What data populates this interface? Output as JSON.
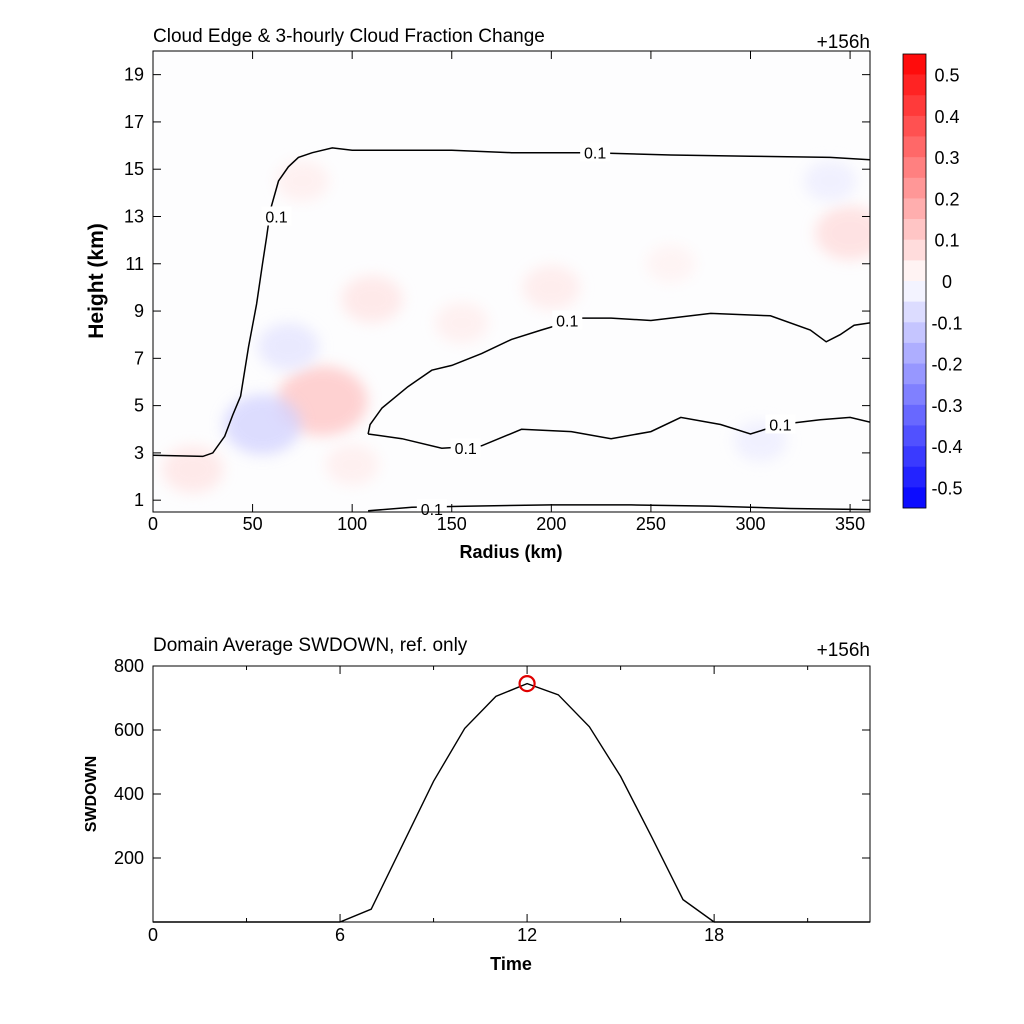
{
  "chart_data": [
    {
      "type": "heatmap",
      "title": "Cloud Edge & 3-hourly Cloud Fraction Change",
      "time_label": "+156h",
      "xlabel": "Radius (km)",
      "ylabel": "Height (km)",
      "xlim": [
        0,
        360
      ],
      "ylim": [
        0.5,
        20
      ],
      "xticks": [
        0,
        50,
        100,
        150,
        200,
        250,
        300,
        350
      ],
      "yticks": [
        1,
        3,
        5,
        7,
        9,
        11,
        13,
        15,
        17,
        19
      ],
      "colorbar": {
        "min": -0.55,
        "max": 0.55,
        "levels": 22,
        "tick_labels": [
          "0.5",
          "0.4",
          "0.3",
          "0.2",
          "0.1",
          "0",
          "-0.1",
          "-0.2",
          "-0.3",
          "-0.4",
          "-0.5"
        ],
        "tick_values": [
          0.5,
          0.4,
          0.3,
          0.2,
          0.1,
          0,
          -0.1,
          -0.2,
          -0.3,
          -0.4,
          -0.5
        ]
      },
      "anomalies": [
        {
          "x": 85,
          "y": 5.2,
          "value": 0.13
        },
        {
          "x": 55,
          "y": 4.2,
          "value": -0.1
        },
        {
          "x": 68,
          "y": 7.5,
          "value": -0.06
        },
        {
          "x": 110,
          "y": 9.5,
          "value": 0.06
        },
        {
          "x": 75,
          "y": 14.5,
          "value": 0.04
        },
        {
          "x": 350,
          "y": 12.3,
          "value": 0.08
        },
        {
          "x": 200,
          "y": 10.0,
          "value": 0.05
        },
        {
          "x": 20,
          "y": 2.3,
          "value": 0.06
        },
        {
          "x": 100,
          "y": 2.5,
          "value": 0.04
        },
        {
          "x": 155,
          "y": 8.5,
          "value": 0.04
        },
        {
          "x": 305,
          "y": 3.5,
          "value": -0.04
        },
        {
          "x": 340,
          "y": 14.5,
          "value": -0.04
        },
        {
          "x": 260,
          "y": 11.0,
          "value": 0.03
        }
      ],
      "contour_level": "0.1",
      "contours": [
        {
          "name": "outer-cloud-edge",
          "points": [
            [
              0,
              2.9
            ],
            [
              25,
              2.85
            ],
            [
              30,
              3.0
            ],
            [
              36,
              3.7
            ],
            [
              40,
              4.6
            ],
            [
              44,
              5.4
            ],
            [
              48,
              7.5
            ],
            [
              52,
              9.3
            ],
            [
              55,
              11.0
            ],
            [
              57,
              12.1
            ],
            [
              59,
              13.3
            ],
            [
              63,
              14.5
            ],
            [
              68,
              15.1
            ],
            [
              73,
              15.5
            ],
            [
              80,
              15.7
            ],
            [
              90,
              15.9
            ],
            [
              100,
              15.8
            ],
            [
              120,
              15.8
            ],
            [
              150,
              15.8
            ],
            [
              180,
              15.7
            ],
            [
              220,
              15.7
            ],
            [
              260,
              15.6
            ],
            [
              300,
              15.55
            ],
            [
              340,
              15.5
            ],
            [
              360,
              15.4
            ]
          ]
        },
        {
          "name": "middle-layer-top",
          "points": [
            [
              108,
              3.8
            ],
            [
              109,
              4.2
            ],
            [
              115,
              4.9
            ],
            [
              128,
              5.8
            ],
            [
              140,
              6.5
            ],
            [
              150,
              6.7
            ],
            [
              165,
              7.2
            ],
            [
              180,
              7.8
            ],
            [
              195,
              8.2
            ],
            [
              215,
              8.7
            ],
            [
              230,
              8.7
            ],
            [
              250,
              8.6
            ],
            [
              280,
              8.9
            ],
            [
              310,
              8.8
            ],
            [
              330,
              8.2
            ],
            [
              338,
              7.7
            ],
            [
              345,
              8.0
            ],
            [
              352,
              8.4
            ],
            [
              360,
              8.5
            ]
          ]
        },
        {
          "name": "middle-layer-bottom",
          "points": [
            [
              108,
              3.8
            ],
            [
              125,
              3.6
            ],
            [
              145,
              3.2
            ],
            [
              165,
              3.3
            ],
            [
              185,
              4.0
            ],
            [
              210,
              3.9
            ],
            [
              230,
              3.6
            ],
            [
              250,
              3.9
            ],
            [
              265,
              4.5
            ],
            [
              285,
              4.2
            ],
            [
              300,
              3.8
            ],
            [
              315,
              4.2
            ],
            [
              335,
              4.4
            ],
            [
              350,
              4.5
            ],
            [
              360,
              4.3
            ]
          ]
        },
        {
          "name": "lowest-layer",
          "points": [
            [
              108,
              0.55
            ],
            [
              130,
              0.7
            ],
            [
              160,
              0.75
            ],
            [
              200,
              0.8
            ],
            [
              240,
              0.8
            ],
            [
              280,
              0.75
            ],
            [
              320,
              0.65
            ],
            [
              360,
              0.6
            ]
          ]
        }
      ],
      "contour_labels": [
        {
          "x": 62,
          "y": 13.0,
          "text": "0.1"
        },
        {
          "x": 222,
          "y": 15.7,
          "text": "0.1"
        },
        {
          "x": 208,
          "y": 8.6,
          "text": "0.1"
        },
        {
          "x": 157,
          "y": 3.2,
          "text": "0.1"
        },
        {
          "x": 315,
          "y": 4.2,
          "text": "0.1"
        },
        {
          "x": 140,
          "y": 0.62,
          "text": "0.1"
        }
      ]
    },
    {
      "type": "line",
      "title": "Domain Average SWDOWN, ref. only",
      "time_label": "+156h",
      "xlabel": "Time",
      "ylabel": "SWDOWN",
      "xlim": [
        0,
        23
      ],
      "ylim": [
        0,
        800
      ],
      "xticks": [
        0,
        6,
        12,
        18
      ],
      "yticks": [
        200,
        400,
        600,
        800
      ],
      "x": [
        0,
        1,
        2,
        3,
        4,
        5,
        6,
        7,
        8,
        9,
        10,
        11,
        12,
        13,
        14,
        15,
        16,
        17,
        18,
        19,
        20,
        21,
        22,
        23
      ],
      "values": [
        0,
        0,
        0,
        0,
        0,
        0,
        0,
        40,
        240,
        440,
        605,
        705,
        745,
        710,
        610,
        455,
        265,
        70,
        0,
        0,
        0,
        0,
        0,
        0
      ],
      "marker": {
        "x": 12,
        "y": 745,
        "color": "#e00000"
      }
    }
  ]
}
